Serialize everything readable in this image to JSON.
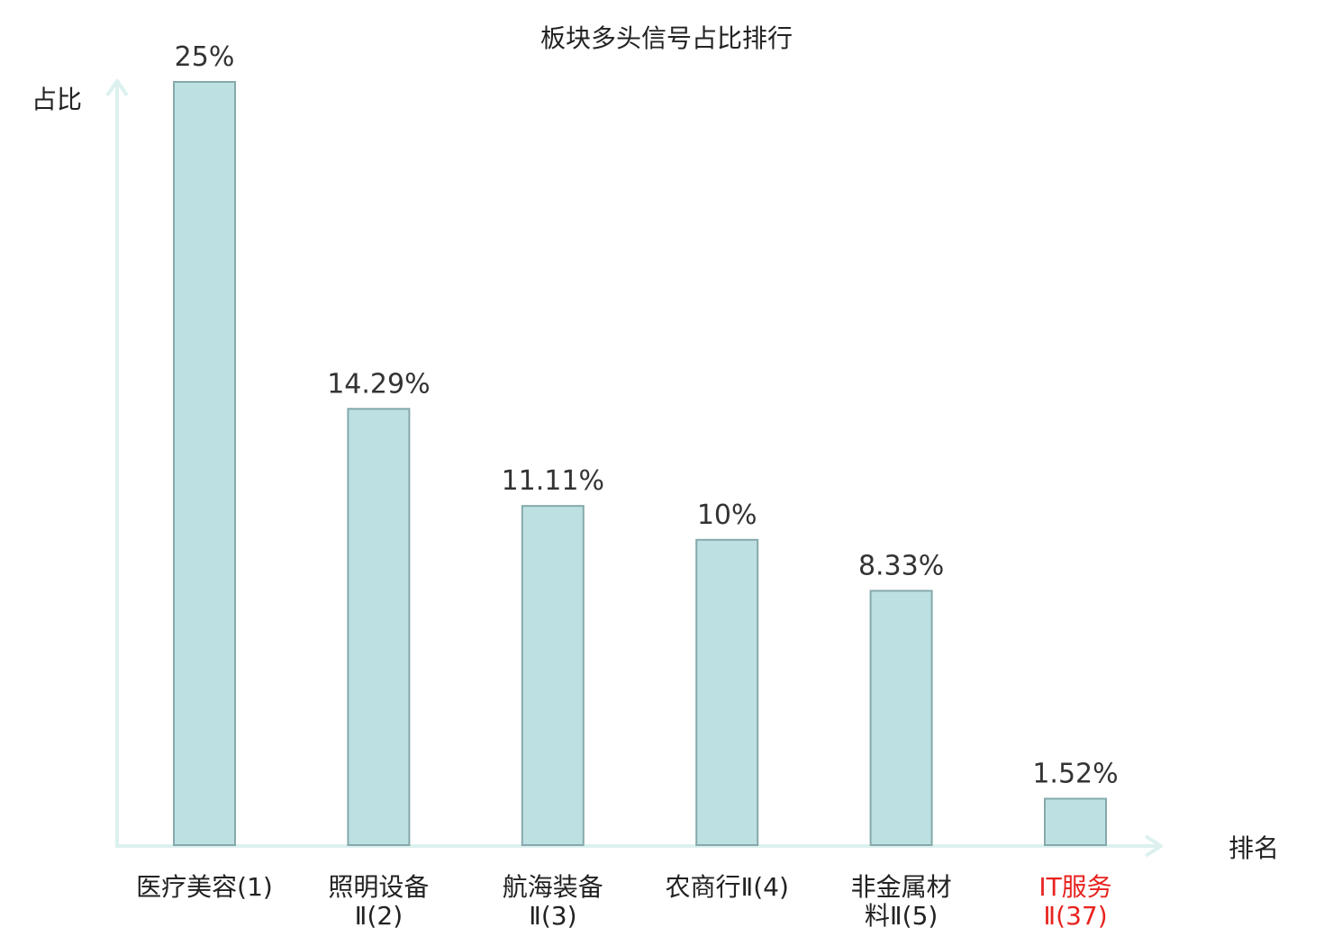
{
  "chart_data": {
    "type": "bar",
    "title": "板块多头信号占比排行",
    "ylabel": "占比",
    "xlabel": "排名",
    "ylim": [
      0,
      25
    ],
    "grid": false,
    "categories": [
      {
        "lines": [
          "医疗美容(1)"
        ],
        "highlight": false
      },
      {
        "lines": [
          "照明设备",
          "Ⅱ(2)"
        ],
        "highlight": false
      },
      {
        "lines": [
          "航海装备",
          "Ⅱ(3)"
        ],
        "highlight": false
      },
      {
        "lines": [
          "农商行Ⅱ(4)"
        ],
        "highlight": false
      },
      {
        "lines": [
          "非金属材",
          "料Ⅱ(5)"
        ],
        "highlight": false
      },
      {
        "lines": [
          "IT服务",
          "Ⅱ(37)"
        ],
        "highlight": true
      }
    ],
    "values": [
      25,
      14.29,
      11.11,
      10,
      8.33,
      1.52
    ],
    "value_labels": [
      "25%",
      "14.29%",
      "11.11%",
      "10%",
      "8.33%",
      "1.52%"
    ],
    "colors": {
      "bar_fill": "#bde0e2",
      "bar_stroke": "#86a9ab",
      "axis": "#dcf1ef",
      "text": "#222222",
      "value_text": "#333333",
      "highlight_text": "#e8231f"
    }
  }
}
